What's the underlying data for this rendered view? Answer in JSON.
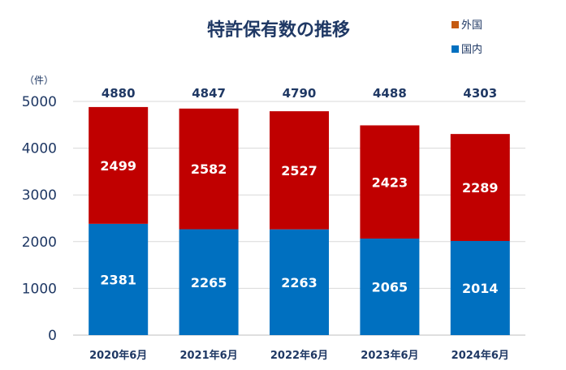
{
  "chart_data": {
    "type": "bar",
    "stacked": true,
    "title": "特許保有数の推移",
    "unit_label": "（件）",
    "categories": [
      "2020年6月",
      "2021年6月",
      "2022年6月",
      "2023年6月",
      "2024年6月"
    ],
    "series": [
      {
        "name": "国内",
        "color": "#0070c0",
        "values": [
          2381,
          2265,
          2263,
          2065,
          2014
        ]
      },
      {
        "name": "外国",
        "color": "#c00000",
        "values": [
          2499,
          2582,
          2527,
          2423,
          2289
        ]
      }
    ],
    "totals": [
      4880,
      4847,
      4790,
      4488,
      4303
    ],
    "legend": [
      {
        "name": "外国",
        "color": "#c55a11"
      },
      {
        "name": "国内",
        "color": "#0070c0"
      }
    ],
    "yticks": [
      0,
      1000,
      2000,
      3000,
      4000,
      5000
    ],
    "ylim": [
      0,
      5000
    ],
    "grid": true,
    "legend_position": "top-right"
  }
}
